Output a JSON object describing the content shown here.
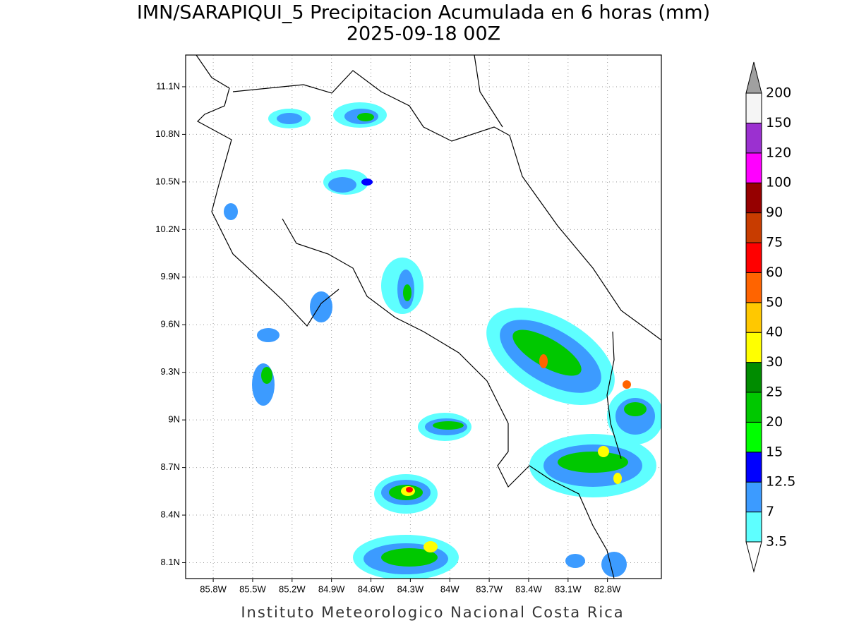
{
  "header": {
    "title": "IMN/SARAPIQUI_5 Precipitacion Acumulada en 6 horas (mm)",
    "subtitle": "2025-09-18 00Z"
  },
  "map": {
    "xlim": [
      -86.01,
      -82.39
    ],
    "ylim": [
      8.0,
      11.3
    ],
    "xticks": [
      {
        "value": -85.8,
        "label": "85.8W"
      },
      {
        "value": -85.5,
        "label": "85.5W"
      },
      {
        "value": -85.2,
        "label": "85.2W"
      },
      {
        "value": -84.9,
        "label": "84.9W"
      },
      {
        "value": -84.6,
        "label": "84.6W"
      },
      {
        "value": -84.3,
        "label": "84.3W"
      },
      {
        "value": -84.0,
        "label": "84W"
      },
      {
        "value": -83.7,
        "label": "83.7W"
      },
      {
        "value": -83.4,
        "label": "83.4W"
      },
      {
        "value": -83.1,
        "label": "83.1W"
      },
      {
        "value": -82.8,
        "label": "82.8W"
      }
    ],
    "yticks": [
      {
        "value": 11.1,
        "label": "11.1N"
      },
      {
        "value": 10.8,
        "label": "10.8N"
      },
      {
        "value": 10.5,
        "label": "10.5N"
      },
      {
        "value": 10.2,
        "label": "10.2N"
      },
      {
        "value": 9.9,
        "label": "9.9N"
      },
      {
        "value": 9.6,
        "label": "9.6N"
      },
      {
        "value": 9.3,
        "label": "9.3N"
      },
      {
        "value": 9.0,
        "label": "9N"
      },
      {
        "value": 8.7,
        "label": "8.7N"
      },
      {
        "value": 8.4,
        "label": "8.4N"
      },
      {
        "value": 8.1,
        "label": "8.1N"
      }
    ]
  },
  "colorbar": {
    "levels": [
      3.5,
      7,
      12.5,
      15,
      20,
      25,
      30,
      40,
      50,
      60,
      75,
      90,
      100,
      120,
      150,
      200
    ],
    "colors": [
      "#5effff",
      "#3c9bff",
      "#0000ff",
      "#00ff00",
      "#00c800",
      "#008c00",
      "#ffff00",
      "#ffc800",
      "#ff6400",
      "#ff0000",
      "#c83c00",
      "#960000",
      "#ff00ff",
      "#9b30d0",
      "#f5f5f5"
    ],
    "over_color": "#a0a0a0",
    "under_color": "#ffffff"
  },
  "footer": "Instituto Meteorologico Nacional Costa Rica"
}
